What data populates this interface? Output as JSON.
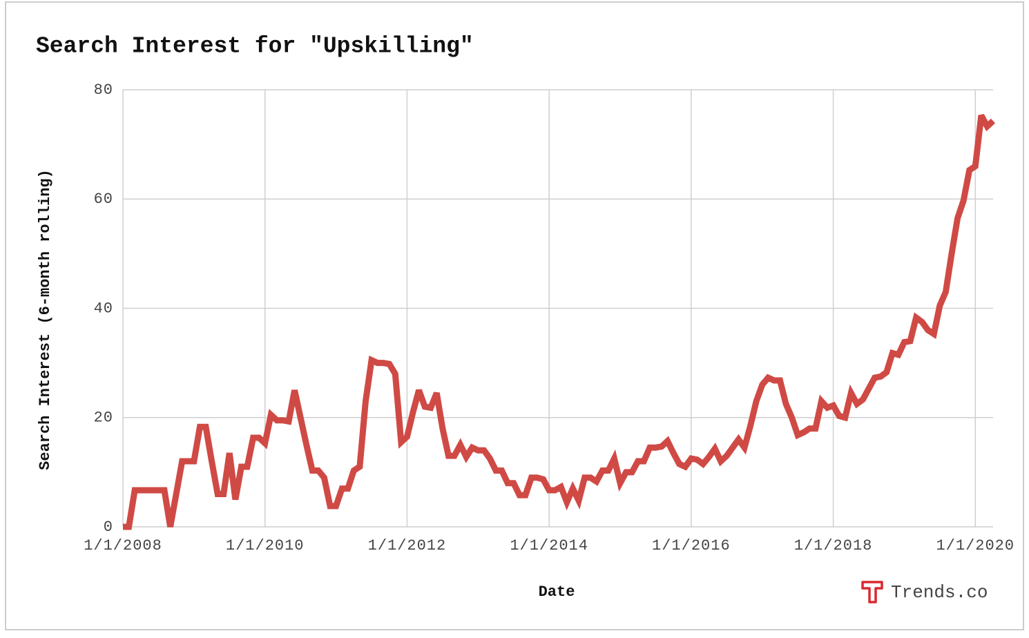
{
  "chart_data": {
    "type": "line",
    "title": "Search Interest for \"Upskilling\"",
    "x_label": "Date",
    "y_label": "Search Interest (6-month rolling)",
    "watermark": "Trends.co",
    "color": "#d04a45",
    "grid": true,
    "x": [
      "1/1/2008",
      "2/1/2008",
      "3/1/2008",
      "4/1/2008",
      "5/1/2008",
      "6/1/2008",
      "7/1/2008",
      "8/1/2008",
      "9/1/2008",
      "10/1/2008",
      "11/1/2008",
      "12/1/2008",
      "1/1/2009",
      "2/1/2009",
      "3/1/2009",
      "4/1/2009",
      "5/1/2009",
      "6/1/2009",
      "7/1/2009",
      "8/1/2009",
      "9/1/2009",
      "10/1/2009",
      "11/1/2009",
      "12/1/2009",
      "1/1/2010",
      "2/1/2010",
      "3/1/2010",
      "4/1/2010",
      "5/1/2010",
      "6/1/2010",
      "7/1/2010",
      "8/1/2010",
      "9/1/2010",
      "10/1/2010",
      "11/1/2010",
      "12/1/2010",
      "1/1/2011",
      "2/1/2011",
      "3/1/2011",
      "4/1/2011",
      "5/1/2011",
      "6/1/2011",
      "7/1/2011",
      "8/1/2011",
      "9/1/2011",
      "10/1/2011",
      "11/1/2011",
      "12/1/2011",
      "1/1/2012",
      "2/1/2012",
      "3/1/2012",
      "4/1/2012",
      "5/1/2012",
      "6/1/2012",
      "7/1/2012",
      "8/1/2012",
      "9/1/2012",
      "10/1/2012",
      "11/1/2012",
      "12/1/2012",
      "1/1/2013",
      "2/1/2013",
      "3/1/2013",
      "4/1/2013",
      "5/1/2013",
      "6/1/2013",
      "7/1/2013",
      "8/1/2013",
      "9/1/2013",
      "10/1/2013",
      "11/1/2013",
      "12/1/2013",
      "1/1/2014",
      "2/1/2014",
      "3/1/2014",
      "4/1/2014",
      "5/1/2014",
      "6/1/2014",
      "7/1/2014",
      "8/1/2014",
      "9/1/2014",
      "10/1/2014",
      "11/1/2014",
      "12/1/2014",
      "1/1/2015",
      "2/1/2015",
      "3/1/2015",
      "4/1/2015",
      "5/1/2015",
      "6/1/2015",
      "7/1/2015",
      "8/1/2015",
      "9/1/2015",
      "10/1/2015",
      "11/1/2015",
      "12/1/2015",
      "1/1/2016",
      "2/1/2016",
      "3/1/2016",
      "4/1/2016",
      "5/1/2016",
      "6/1/2016",
      "7/1/2016",
      "8/1/2016",
      "9/1/2016",
      "10/1/2016",
      "11/1/2016",
      "12/1/2016",
      "1/1/2017",
      "2/1/2017",
      "3/1/2017",
      "4/1/2017",
      "5/1/2017",
      "6/1/2017",
      "7/1/2017",
      "8/1/2017",
      "9/1/2017",
      "10/1/2017",
      "11/1/2017",
      "12/1/2017",
      "1/1/2018",
      "2/1/2018",
      "3/1/2018",
      "4/1/2018",
      "5/1/2018",
      "6/1/2018",
      "7/1/2018",
      "8/1/2018",
      "9/1/2018",
      "10/1/2018",
      "11/1/2018",
      "12/1/2018",
      "1/1/2019",
      "2/1/2019",
      "3/1/2019",
      "4/1/2019",
      "5/1/2019",
      "6/1/2019",
      "7/1/2019",
      "8/1/2019",
      "9/1/2019",
      "10/1/2019",
      "11/1/2019",
      "12/1/2019",
      "1/1/2020",
      "2/1/2020",
      "3/1/2020",
      "4/1/2020"
    ],
    "values": [
      0,
      0,
      6.7,
      6.7,
      6.7,
      6.7,
      6.7,
      6.7,
      0,
      6,
      12,
      12,
      12,
      18.3,
      18.3,
      12,
      6,
      6,
      13.5,
      5,
      11,
      11,
      16.3,
      16.3,
      15.3,
      20.5,
      19.5,
      19.5,
      19.3,
      25,
      20,
      15,
      10.3,
      10.3,
      9,
      3.8,
      3.8,
      7,
      7,
      10.3,
      11,
      23,
      30.5,
      30,
      30,
      29.8,
      28,
      15.5,
      16.5,
      21,
      25,
      22,
      21.8,
      24.5,
      18,
      13,
      13,
      15,
      12.8,
      14.5,
      14,
      14,
      12.5,
      10.3,
      10.3,
      8,
      8,
      5.8,
      5.8,
      9,
      9,
      8.7,
      6.7,
      6.7,
      7.3,
      4.5,
      7,
      4.8,
      9,
      9,
      8.3,
      10.3,
      10.3,
      12.5,
      8,
      10,
      10,
      12,
      12,
      14.5,
      14.5,
      14.7,
      15.7,
      13.5,
      11.5,
      11,
      12.5,
      12.3,
      11.5,
      12.8,
      14.3,
      12,
      13,
      14.5,
      16,
      14.5,
      18.5,
      23,
      26,
      27.3,
      26.8,
      26.8,
      22.5,
      20,
      16.8,
      17.3,
      18,
      18,
      23,
      21.8,
      22.2,
      20.3,
      20,
      24.5,
      22.5,
      23.3,
      25.3,
      27.3,
      27.5,
      28.3,
      31.8,
      31.5,
      33.8,
      34,
      38.3,
      37.5,
      36,
      35.3,
      40.5,
      43,
      50,
      56.5,
      59.7,
      65.3,
      66,
      75.3,
      73.3,
      74.3
    ],
    "xlim": [
      "1/1/2008",
      "4/1/2020"
    ],
    "xticks": [
      "1/1/2008",
      "1/1/2010",
      "1/1/2012",
      "1/1/2014",
      "1/1/2016",
      "1/1/2018",
      "1/1/2020"
    ],
    "ylim": [
      0,
      80
    ],
    "yticks": [
      0,
      20,
      40,
      60,
      80
    ]
  }
}
